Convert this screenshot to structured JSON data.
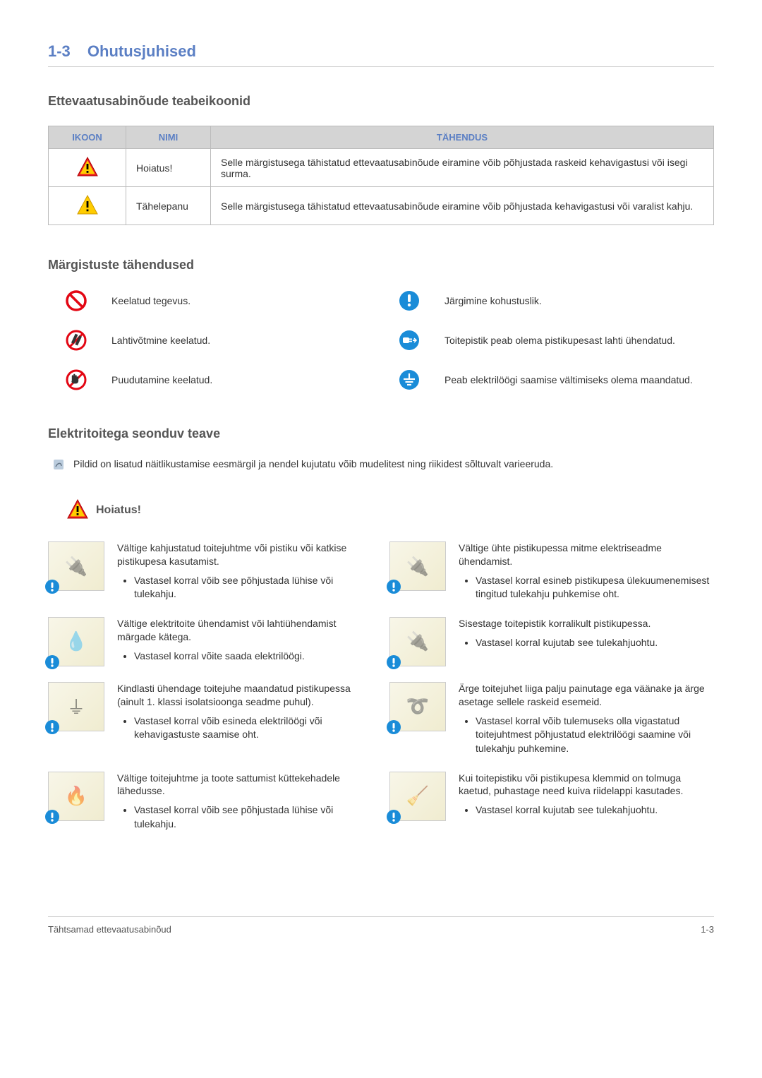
{
  "page": {
    "section_number": "1-3",
    "section_title": "Ohutusjuhised",
    "footer_left": "Tähtsamad ettevaatusabinõud",
    "footer_right": "1-3"
  },
  "icons_section": {
    "heading": "Ettevaatusabinõude teabeikoonid",
    "headers": {
      "icon": "IKOON",
      "name": "NIMI",
      "meaning": "TÄHENDUS"
    },
    "rows": [
      {
        "icon_type": "warning-red",
        "name": "Hoiatus!",
        "meaning": "Selle märgistusega tähistatud ettevaatusabinõude eiramine võib põhjustada raskeid kehavigastusi või isegi surma."
      },
      {
        "icon_type": "warning-yellow",
        "name": "Tähelepanu",
        "meaning": "Selle märgistusega tähistatud ettevaatusabinõude eiramine võib põhjustada kehavigastusi või varalist kahju."
      }
    ]
  },
  "signs_section": {
    "heading": "Märgistuste tähendused",
    "items": [
      {
        "icon": "prohibit",
        "text": "Keelatud tegevus."
      },
      {
        "icon": "mandatory",
        "text": "Järgimine kohustuslik."
      },
      {
        "icon": "no-disassemble",
        "text": "Lahtivõtmine keelatud."
      },
      {
        "icon": "unplug",
        "text": "Toitepistik peab olema pistikupesast lahti ühendatud."
      },
      {
        "icon": "no-touch",
        "text": "Puudutamine keelatud."
      },
      {
        "icon": "ground",
        "text": "Peab elektrilöögi saamise vältimiseks olema maandatud."
      }
    ]
  },
  "power_section": {
    "heading": "Elektritoitega seonduv teave",
    "note": "Pildid on lisatud näitlikustamise eesmärgil ja nendel kujutatu võib mudelitest ning riikidest sõltuvalt varieeruda.",
    "warn_label": "Hoiatus!",
    "items": [
      {
        "title": "Vältige kahjustatud toitejuhtme või pistiku või katkise pistikupesa kasutamist.",
        "bullets": [
          "Vastasel korral võib see põhjustada lühise või tulekahju."
        ]
      },
      {
        "title": "Vältige ühte pistikupessa mitme elektriseadme ühendamist.",
        "bullets": [
          "Vastasel korral esineb pistikupesa ülekuumenemisest tingitud tulekahju puhkemise oht."
        ]
      },
      {
        "title": "Vältige elektritoite ühendamist või lahtiühendamist märgade kätega.",
        "bullets": [
          "Vastasel korral võite saada elektrilöögi."
        ]
      },
      {
        "title": "Sisestage toitepistik korralikult pistikupessa.",
        "bullets": [
          "Vastasel korral kujutab see tulekahjuohtu."
        ]
      },
      {
        "title": "Kindlasti ühendage toitejuhe maandatud pistikupessa (ainult 1. klassi isolatsioonga seadme puhul).",
        "bullets": [
          "Vastasel korral võib esineda elektrilöögi või kehavigastuste saamise oht."
        ]
      },
      {
        "title": "Ärge toitejuhet liiga palju painutage ega väänake ja ärge asetage sellele raskeid esemeid.",
        "bullets": [
          "Vastasel korral võib tulemuseks olla vigastatud toitejuhtmest põhjustatud elektrilöögi saamine või tulekahju puhkemine."
        ]
      },
      {
        "title": "Vältige toitejuhtme ja toote sattumist küttekehadele lähedusse.",
        "bullets": [
          "Vastasel korral võib see põhjustada lühise või tulekahju."
        ]
      },
      {
        "title": "Kui toitepistiku või pistikupesa klemmid on tolmuga kaetud, puhastage need kuiva riidelappi kasutades.",
        "bullets": [
          "Vastasel korral kujutab see tulekahjuohtu."
        ]
      }
    ]
  },
  "colors": {
    "accent": "#5b7fc4",
    "warn_red": "#e30613",
    "warn_yellow": "#ffcc00",
    "mandatory_blue": "#1a8cd8",
    "prohibit_red": "#e30613"
  }
}
